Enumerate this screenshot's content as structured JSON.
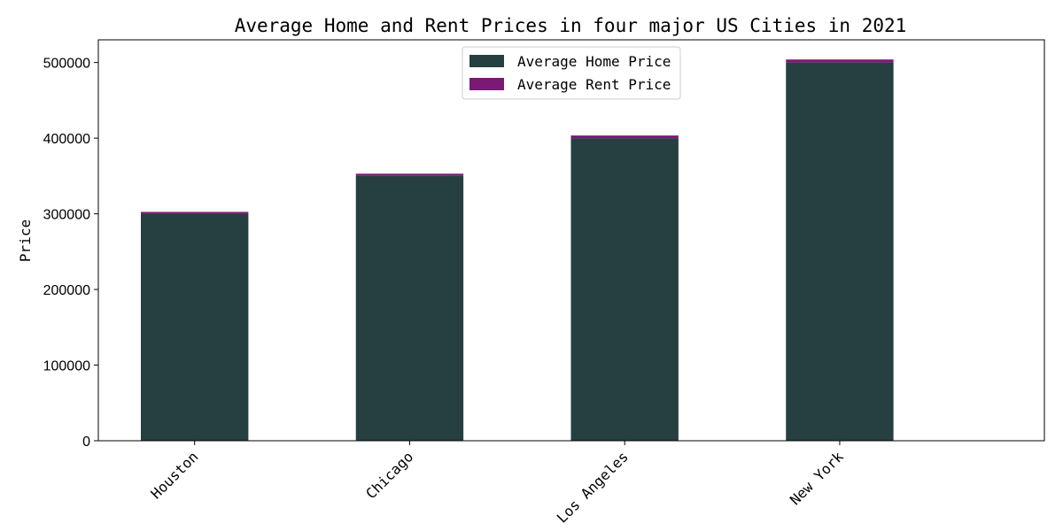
{
  "chart_data": {
    "type": "bar",
    "stacked": true,
    "title": "Average Home and Rent Prices in four major US Cities in 2021",
    "xlabel": "",
    "ylabel": "Price",
    "categories": [
      "Houston",
      "Chicago",
      "Los Angeles",
      "New York"
    ],
    "series": [
      {
        "name": "Average Home Price",
        "values": [
          300000,
          350000,
          400000,
          500000
        ],
        "color": "#263f40"
      },
      {
        "name": "Average Rent Price",
        "values": [
          2500,
          3000,
          3500,
          4000
        ],
        "color": "#7a1a75"
      }
    ],
    "ylim": [
      0,
      530000
    ],
    "yticks": [
      0,
      100000,
      200000,
      300000,
      400000,
      500000
    ],
    "grid": false,
    "legend": "upper-center",
    "xtick_rotation": -45
  }
}
